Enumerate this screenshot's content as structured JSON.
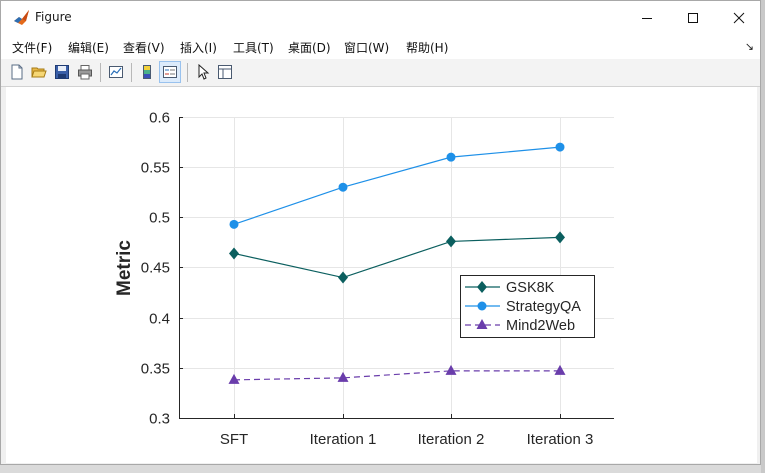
{
  "window": {
    "title": "Figure"
  },
  "menu": {
    "items": [
      "文件(F)",
      "编辑(E)",
      "查看(V)",
      "插入(I)",
      "工具(T)",
      "桌面(D)",
      "窗口(W)",
      "帮助(H)"
    ]
  },
  "toolbar": {
    "icons": [
      "new-figure-icon",
      "open-file-icon",
      "save-icon",
      "print-icon",
      "link-plot-icon",
      "colorbar-icon",
      "legend-icon",
      "pointer-icon",
      "property-inspector-icon"
    ]
  },
  "colors": {
    "gsk8k": "#0b5f5f",
    "strategyqa": "#1e90e8",
    "mind2web": "#6a3dab"
  },
  "chart_data": {
    "type": "line",
    "categories": [
      "SFT",
      "Iteration 1",
      "Iteration 2",
      "Iteration 3"
    ],
    "ylabel": "Metric",
    "xlabel": "",
    "ylim": [
      0.3,
      0.6
    ],
    "yticks": [
      "0.3",
      "0.35",
      "0.4",
      "0.45",
      "0.5",
      "0.55",
      "0.6"
    ],
    "grid": true,
    "legend_position": "inside-right",
    "series": [
      {
        "name": "GSK8K",
        "values": [
          0.464,
          0.44,
          0.476,
          0.48
        ],
        "marker": "diamond",
        "line": "solid"
      },
      {
        "name": "StrategyQA",
        "values": [
          0.493,
          0.53,
          0.56,
          0.57
        ],
        "marker": "circle",
        "line": "solid"
      },
      {
        "name": "Mind2Web",
        "values": [
          0.338,
          0.34,
          0.347,
          0.347
        ],
        "marker": "triangle",
        "line": "dashed"
      }
    ]
  }
}
